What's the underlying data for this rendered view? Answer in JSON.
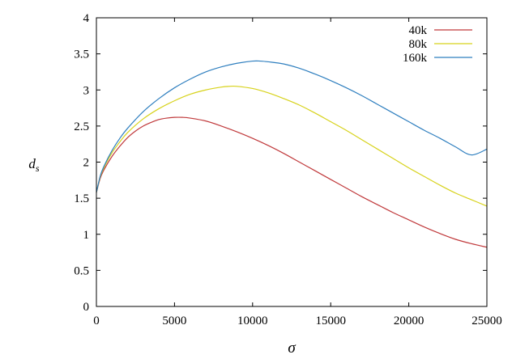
{
  "chart_data": {
    "type": "line",
    "title": "",
    "xlabel": "σ",
    "ylabel_main": "d",
    "ylabel_sub": "s",
    "xlim": [
      0,
      25000
    ],
    "ylim": [
      0,
      4
    ],
    "xticks": [
      0,
      5000,
      10000,
      15000,
      20000,
      25000
    ],
    "yticks": [
      0,
      0.5,
      1,
      1.5,
      2,
      2.5,
      3,
      3.5,
      4
    ],
    "ytick_labels": [
      "0",
      "0.5",
      "1",
      "1.5",
      "2",
      "2.5",
      "3",
      "3.5",
      "4"
    ],
    "grid": false,
    "legend_position": "top-right",
    "series": [
      {
        "name": "40k",
        "color": "#c0393b",
        "x": [
          0,
          250,
          500,
          1000,
          1500,
          2000,
          2500,
          3000,
          3500,
          4000,
          4500,
          5000,
          5500,
          6000,
          7000,
          8000,
          9000,
          10000,
          11000,
          12000,
          13000,
          14000,
          15000,
          16000,
          17000,
          18000,
          19000,
          20000,
          21000,
          22000,
          23000,
          24000,
          25000
        ],
        "y": [
          1.58,
          1.78,
          1.9,
          2.08,
          2.22,
          2.34,
          2.43,
          2.5,
          2.55,
          2.59,
          2.61,
          2.62,
          2.62,
          2.61,
          2.57,
          2.5,
          2.42,
          2.33,
          2.23,
          2.12,
          2.0,
          1.88,
          1.76,
          1.64,
          1.52,
          1.41,
          1.3,
          1.2,
          1.1,
          1.01,
          0.93,
          0.87,
          0.82
        ]
      },
      {
        "name": "80k",
        "color": "#d7d21a",
        "x": [
          0,
          250,
          500,
          1000,
          1500,
          2000,
          3000,
          4000,
          5000,
          6000,
          7000,
          8000,
          8500,
          9000,
          10000,
          11000,
          12000,
          13000,
          14000,
          15000,
          16000,
          17000,
          18000,
          19000,
          20000,
          21000,
          22000,
          23000,
          24000,
          25000
        ],
        "y": [
          1.58,
          1.8,
          1.93,
          2.13,
          2.28,
          2.41,
          2.6,
          2.74,
          2.85,
          2.94,
          3.0,
          3.04,
          3.05,
          3.05,
          3.02,
          2.96,
          2.88,
          2.79,
          2.68,
          2.56,
          2.44,
          2.31,
          2.18,
          2.05,
          1.92,
          1.8,
          1.68,
          1.57,
          1.48,
          1.39
        ]
      },
      {
        "name": "160k",
        "color": "#2f7fbf",
        "x": [
          0,
          250,
          500,
          1000,
          1500,
          2000,
          3000,
          4000,
          5000,
          6000,
          7000,
          8000,
          9000,
          10000,
          10500,
          11000,
          12000,
          13000,
          14000,
          15000,
          16000,
          17000,
          18000,
          19000,
          20000,
          21000,
          22000,
          23000,
          24000,
          25000
        ],
        "y": [
          1.58,
          1.81,
          1.95,
          2.16,
          2.33,
          2.47,
          2.7,
          2.88,
          3.03,
          3.15,
          3.25,
          3.32,
          3.37,
          3.4,
          3.4,
          3.39,
          3.36,
          3.3,
          3.22,
          3.13,
          3.03,
          2.92,
          2.8,
          2.68,
          2.56,
          2.44,
          2.33,
          2.21,
          2.1,
          2.18
        ]
      }
    ]
  }
}
